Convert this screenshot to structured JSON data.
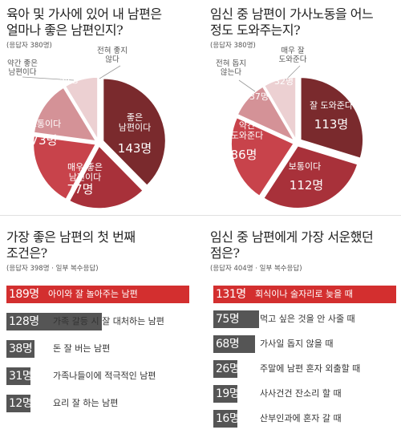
{
  "panels": {
    "q1": {
      "title": "육아 및 가사에 있어 내 남편은\n얼마나 좋은 남편인지?",
      "subtitle": "(응답자 380명)"
    },
    "q2": {
      "title": "임신 중 남편이 가사노동을 어느\n정도 도와주는지?",
      "subtitle": "(응답자 380명)"
    },
    "q3": {
      "title": "가장 좋은 남편의 첫 번째\n조건은?",
      "subtitle": "(응답자 398명 · 일부 복수응답)"
    },
    "q4": {
      "title": "임신 중 남편에게 가장 서운했던\n점은?",
      "subtitle": "(응답자 404명 · 일부 복수응답)"
    }
  },
  "chart_data": [
    {
      "type": "pie",
      "title": "육아 및 가사에 있어 내 남편은 얼마나 좋은 남편인지?",
      "categories": [
        "좋은 남편이다",
        "매우 좋은 남편이다",
        "보통이다",
        "약간 좋은 남편이다",
        "전혀 좋지 않다"
      ],
      "values": [
        143,
        77,
        73,
        54,
        33
      ],
      "value_labels": [
        "143명",
        "77명",
        "73명",
        "54명",
        "33명"
      ],
      "colors": [
        "#7a2a2d",
        "#a8313a",
        "#c8434b",
        "#d49297",
        "#ecd0d2"
      ]
    },
    {
      "type": "pie",
      "title": "임신 중 남편이 가사노동을 어느 정도 도와주는지?",
      "categories": [
        "잘 도와준다",
        "보통이다",
        "약간 도와준다",
        "전혀 돕지 않는다",
        "매우 잘 도와준다"
      ],
      "values": [
        113,
        112,
        86,
        37,
        32
      ],
      "value_labels": [
        "113명",
        "112명",
        "86명",
        "37명",
        "32명"
      ],
      "colors": [
        "#7a2a2d",
        "#a8313a",
        "#c8434b",
        "#d49297",
        "#ecd0d2"
      ]
    },
    {
      "type": "bar",
      "title": "가장 좋은 남편의 첫 번째 조건은?",
      "categories": [
        "아이와 잘 놀아주는 남편",
        "가족 갈등 시 잘 대처하는 남편",
        "돈 잘 버는 남편",
        "가족나들이에 적극적인 남편",
        "요리 잘 하는 남편"
      ],
      "values": [
        189,
        128,
        38,
        31,
        12
      ],
      "value_labels": [
        "189명",
        "128명",
        "38명",
        "31명",
        "12명"
      ],
      "colors": [
        "#d32f2f",
        "#555555",
        "#555555",
        "#555555",
        "#555555"
      ]
    },
    {
      "type": "bar",
      "title": "임신 중 남편에게 가장 서운했던 점은?",
      "categories": [
        "회식이나 술자리로 늦을 때",
        "먹고 싶은 것을 안 사줄 때",
        "가사일 돕지 않을 때",
        "주말에 남편 혼자 외출할 때",
        "사사건건 잔소리 할 때",
        "산부인과에 혼자 갈 때"
      ],
      "values": [
        131,
        75,
        68,
        26,
        19,
        16
      ],
      "value_labels": [
        "131명",
        "75명",
        "68명",
        "26명",
        "19명",
        "16명"
      ],
      "colors": [
        "#d32f2f",
        "#555555",
        "#555555",
        "#555555",
        "#555555",
        "#555555"
      ]
    }
  ]
}
